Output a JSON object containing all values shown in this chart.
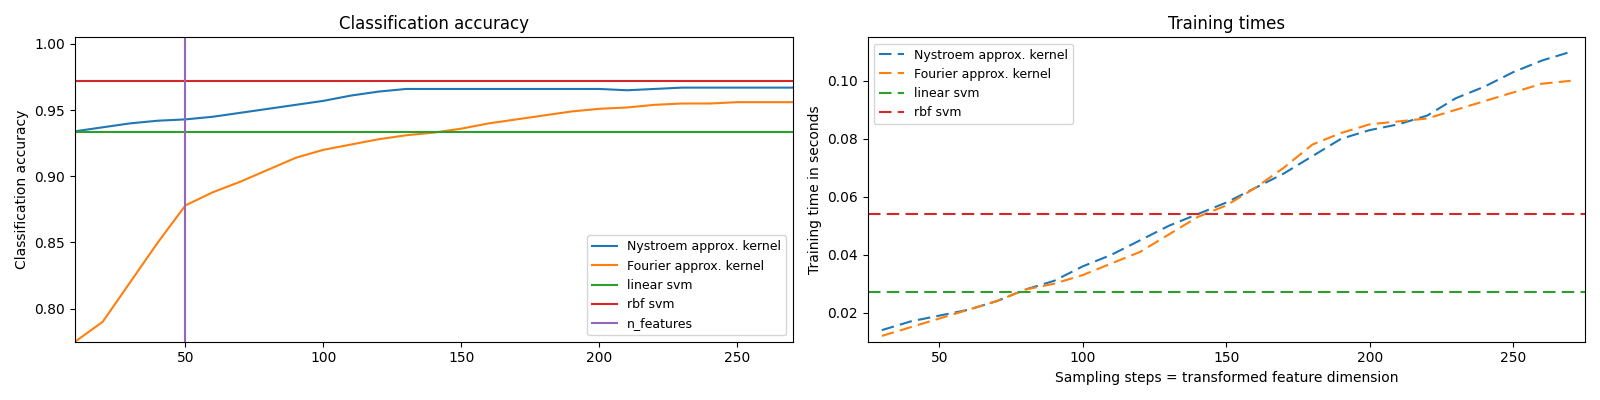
{
  "title_left": "Classification accuracy",
  "title_right": "Training times",
  "ylabel_left": "Classification accuracy",
  "ylabel_right": "Training time in seconds",
  "xlabel_right": "Sampling steps = transformed feature dimension",
  "n_features_line": 50,
  "rbf_svm_acc": 0.972,
  "linear_svm_acc": 0.9335,
  "rbf_svm_time": 0.054,
  "linear_svm_time": 0.027,
  "acc_xlim": [
    10,
    270
  ],
  "acc_ylim": [
    0.775,
    1.005
  ],
  "time_xlim": [
    25,
    275
  ],
  "time_ylim": [
    0.01,
    0.115
  ],
  "colors": {
    "nystroem": "#1f77b4",
    "fourier": "#ff7f0e",
    "linear_svm": "#2ca02c",
    "rbf_svm": "#d62728",
    "n_features": "#9467bd"
  },
  "x_acc": [
    10,
    20,
    30,
    40,
    50,
    60,
    70,
    80,
    90,
    100,
    110,
    120,
    130,
    140,
    150,
    160,
    170,
    180,
    190,
    200,
    210,
    220,
    230,
    240,
    250,
    260,
    270
  ],
  "nystroem_acc": [
    0.934,
    0.937,
    0.94,
    0.942,
    0.943,
    0.945,
    0.948,
    0.951,
    0.954,
    0.957,
    0.961,
    0.964,
    0.966,
    0.966,
    0.966,
    0.966,
    0.966,
    0.966,
    0.966,
    0.966,
    0.965,
    0.966,
    0.967,
    0.967,
    0.967,
    0.967,
    0.967
  ],
  "fourier_acc": [
    0.775,
    0.79,
    0.82,
    0.85,
    0.878,
    0.888,
    0.896,
    0.905,
    0.914,
    0.92,
    0.924,
    0.928,
    0.931,
    0.933,
    0.936,
    0.94,
    0.943,
    0.946,
    0.949,
    0.951,
    0.952,
    0.954,
    0.955,
    0.955,
    0.956,
    0.956,
    0.956
  ],
  "x_time": [
    30,
    40,
    50,
    60,
    70,
    80,
    90,
    100,
    110,
    120,
    130,
    140,
    150,
    160,
    170,
    180,
    190,
    200,
    210,
    220,
    230,
    240,
    250,
    260,
    270
  ],
  "nystroem_time": [
    0.014,
    0.017,
    0.019,
    0.021,
    0.024,
    0.028,
    0.031,
    0.036,
    0.04,
    0.045,
    0.05,
    0.054,
    0.058,
    0.063,
    0.068,
    0.074,
    0.08,
    0.083,
    0.085,
    0.088,
    0.094,
    0.098,
    0.103,
    0.107,
    0.11
  ],
  "fourier_time": [
    0.012,
    0.015,
    0.018,
    0.021,
    0.024,
    0.028,
    0.03,
    0.033,
    0.037,
    0.041,
    0.047,
    0.053,
    0.057,
    0.063,
    0.07,
    0.078,
    0.082,
    0.085,
    0.086,
    0.087,
    0.09,
    0.093,
    0.096,
    0.099,
    0.1
  ]
}
